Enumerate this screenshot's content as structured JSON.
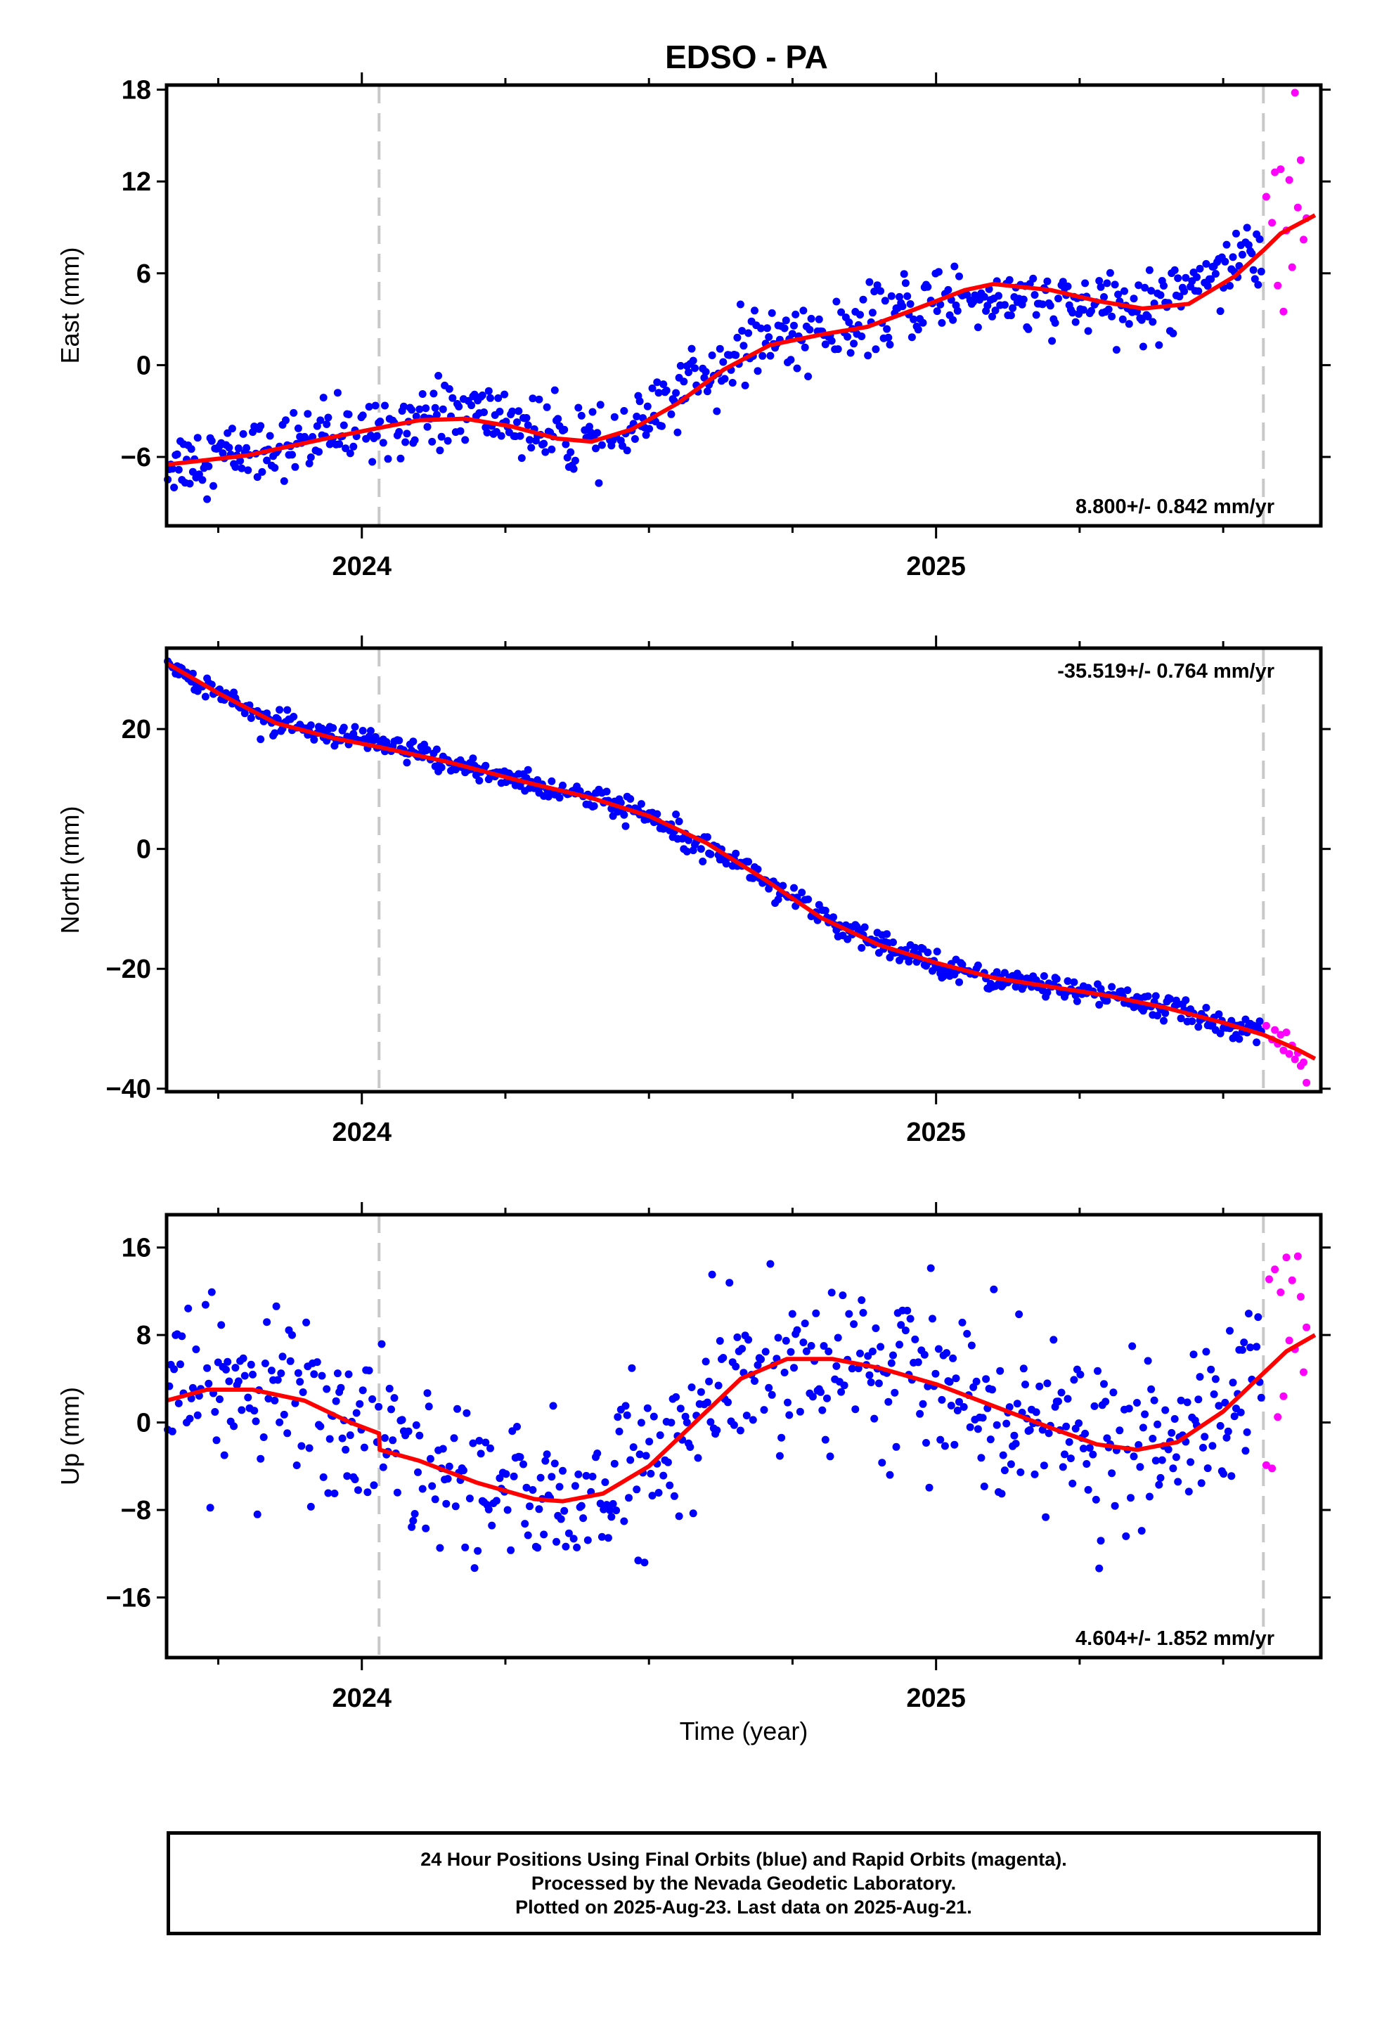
{
  "title": "EDSO - PA",
  "xlabel": "Time (year)",
  "footer": {
    "line1": "24 Hour Positions Using Final Orbits (blue) and Rapid Orbits (magenta).",
    "line2": "Processed by the Nevada Geodetic Laboratory.",
    "line3": "Plotted on 2025-Aug-23. Last data on 2025-Aug-21."
  },
  "colors": {
    "final": "#0000ff",
    "rapid": "#ff00ff",
    "fit": "#ff0000",
    "event": "#c8c8c8"
  },
  "chart_data": [
    {
      "type": "scatter",
      "ylabel": "East (mm)",
      "rate_label": "8.800+/- 0.842 mm/yr",
      "rate_position": "bottom-right",
      "xlim": [
        2023.66,
        2025.67
      ],
      "ylim": [
        -10.5,
        18.3
      ],
      "yticks": [
        -6,
        0,
        6,
        12,
        18
      ],
      "xticks": [
        2024,
        2025
      ],
      "events": [
        2024.03,
        2025.57
      ],
      "fit": [
        [
          2023.66,
          -6.5
        ],
        [
          2023.8,
          -5.9
        ],
        [
          2023.95,
          -4.7
        ],
        [
          2024.03,
          -4.1
        ],
        [
          2024.1,
          -3.6
        ],
        [
          2024.18,
          -3.5
        ],
        [
          2024.26,
          -4.0
        ],
        [
          2024.34,
          -4.8
        ],
        [
          2024.4,
          -5.0
        ],
        [
          2024.47,
          -4.2
        ],
        [
          2024.55,
          -2.5
        ],
        [
          2024.63,
          -0.3
        ],
        [
          2024.71,
          1.3
        ],
        [
          2024.8,
          2.0
        ],
        [
          2024.88,
          2.5
        ],
        [
          2024.96,
          3.6
        ],
        [
          2025.05,
          4.9
        ],
        [
          2025.1,
          5.3
        ],
        [
          2025.2,
          4.9
        ],
        [
          2025.28,
          4.2
        ],
        [
          2025.36,
          3.7
        ],
        [
          2025.44,
          4.0
        ],
        [
          2025.52,
          5.8
        ],
        [
          2025.57,
          7.5
        ],
        [
          2025.6,
          8.6
        ],
        [
          2025.66,
          9.8
        ]
      ],
      "final_trend": [
        [
          2023.66,
          -6.4
        ],
        [
          2023.82,
          -5.5
        ],
        [
          2024.0,
          -4.3
        ],
        [
          2024.1,
          -3.2
        ],
        [
          2024.2,
          -3.1
        ],
        [
          2024.28,
          -3.8
        ],
        [
          2024.36,
          -5.2
        ],
        [
          2024.42,
          -5.0
        ],
        [
          2024.52,
          -3.2
        ],
        [
          2024.58,
          -0.5
        ],
        [
          2024.66,
          0.6
        ],
        [
          2024.72,
          1.9
        ],
        [
          2024.86,
          2.2
        ],
        [
          2024.94,
          3.6
        ],
        [
          2025.06,
          4.7
        ],
        [
          2025.14,
          4.2
        ],
        [
          2025.22,
          3.8
        ],
        [
          2025.3,
          3.8
        ],
        [
          2025.38,
          3.7
        ],
        [
          2025.44,
          5.6
        ],
        [
          2025.5,
          6.6
        ],
        [
          2025.56,
          7.6
        ]
      ],
      "final_noise_mm": 1.05,
      "rapid": [
        [
          2025.575,
          11.0
        ],
        [
          2025.585,
          9.3
        ],
        [
          2025.59,
          12.6
        ],
        [
          2025.595,
          5.2
        ],
        [
          2025.6,
          12.8
        ],
        [
          2025.605,
          3.5
        ],
        [
          2025.61,
          8.8
        ],
        [
          2025.615,
          12.1
        ],
        [
          2025.62,
          6.4
        ],
        [
          2025.625,
          17.8
        ],
        [
          2025.63,
          10.3
        ],
        [
          2025.635,
          13.4
        ],
        [
          2025.64,
          8.2
        ],
        [
          2025.645,
          9.6
        ]
      ]
    },
    {
      "type": "scatter",
      "ylabel": "North (mm)",
      "rate_label": "-35.519+/- 0.764 mm/yr",
      "rate_position": "top-right",
      "xlim": [
        2023.66,
        2025.67
      ],
      "ylim": [
        -40.5,
        33.5
      ],
      "yticks": [
        -40,
        -20,
        0,
        20
      ],
      "xticks": [
        2024,
        2025
      ],
      "events": [
        2024.03,
        2025.57
      ],
      "fit": [
        [
          2023.66,
          31.0
        ],
        [
          2023.75,
          26.0
        ],
        [
          2023.85,
          21.0
        ],
        [
          2023.95,
          18.5
        ],
        [
          2024.03,
          17.0
        ],
        [
          2024.15,
          14.5
        ],
        [
          2024.27,
          11.5
        ],
        [
          2024.4,
          8.5
        ],
        [
          2024.5,
          5.5
        ],
        [
          2024.6,
          1.0
        ],
        [
          2024.7,
          -5.0
        ],
        [
          2024.8,
          -11.5
        ],
        [
          2024.9,
          -16.0
        ],
        [
          2025.0,
          -19.0
        ],
        [
          2025.1,
          -21.5
        ],
        [
          2025.2,
          -23.0
        ],
        [
          2025.3,
          -24.5
        ],
        [
          2025.4,
          -26.5
        ],
        [
          2025.5,
          -29.0
        ],
        [
          2025.57,
          -31.0
        ],
        [
          2025.63,
          -33.5
        ],
        [
          2025.66,
          -35.0
        ]
      ],
      "final_trend": [
        [
          2023.66,
          31.0
        ],
        [
          2023.75,
          26.0
        ],
        [
          2023.85,
          21.0
        ],
        [
          2023.95,
          18.5
        ],
        [
          2024.03,
          17.5
        ],
        [
          2024.15,
          14.5
        ],
        [
          2024.27,
          11.5
        ],
        [
          2024.4,
          8.5
        ],
        [
          2024.5,
          5.5
        ],
        [
          2024.6,
          1.0
        ],
        [
          2024.7,
          -5.0
        ],
        [
          2024.8,
          -11.5
        ],
        [
          2024.9,
          -16.0
        ],
        [
          2025.0,
          -19.0
        ],
        [
          2025.1,
          -21.5
        ],
        [
          2025.2,
          -23.0
        ],
        [
          2025.3,
          -24.5
        ],
        [
          2025.4,
          -26.5
        ],
        [
          2025.5,
          -29.0
        ],
        [
          2025.57,
          -31.0
        ]
      ],
      "final_noise_mm": 1.0,
      "rapid": [
        [
          2025.575,
          -29.5
        ],
        [
          2025.585,
          -31.8
        ],
        [
          2025.59,
          -30.2
        ],
        [
          2025.595,
          -32.5
        ],
        [
          2025.6,
          -31.0
        ],
        [
          2025.605,
          -33.6
        ],
        [
          2025.61,
          -30.6
        ],
        [
          2025.615,
          -34.2
        ],
        [
          2025.62,
          -32.8
        ],
        [
          2025.625,
          -35.1
        ],
        [
          2025.63,
          -34.0
        ],
        [
          2025.635,
          -36.2
        ],
        [
          2025.64,
          -35.6
        ],
        [
          2025.645,
          -39.0
        ]
      ]
    },
    {
      "type": "scatter",
      "ylabel": "Up (mm)",
      "rate_label": "4.604+/- 1.852 mm/yr",
      "rate_position": "bottom-right",
      "xlim": [
        2023.66,
        2025.67
      ],
      "ylim": [
        -21.5,
        19.0
      ],
      "yticks": [
        -16,
        -8,
        0,
        8,
        16
      ],
      "xticks": [
        2024,
        2025
      ],
      "events": [
        2024.03,
        2025.57
      ],
      "fit": [
        [
          2023.66,
          2.0
        ],
        [
          2023.73,
          3.0
        ],
        [
          2023.81,
          3.0
        ],
        [
          2023.9,
          2.0
        ],
        [
          2023.98,
          0.0
        ],
        [
          2024.03,
          -1.0
        ],
        [
          2024.031,
          -2.5
        ],
        [
          2024.1,
          -3.5
        ],
        [
          2024.2,
          -5.5
        ],
        [
          2024.3,
          -7.0
        ],
        [
          2024.35,
          -7.2
        ],
        [
          2024.42,
          -6.5
        ],
        [
          2024.5,
          -4.0
        ],
        [
          2024.58,
          0.0
        ],
        [
          2024.66,
          4.0
        ],
        [
          2024.74,
          5.8
        ],
        [
          2024.82,
          5.8
        ],
        [
          2024.9,
          5.0
        ],
        [
          2025.0,
          3.5
        ],
        [
          2025.1,
          1.5
        ],
        [
          2025.2,
          -0.5
        ],
        [
          2025.28,
          -2.0
        ],
        [
          2025.35,
          -2.5
        ],
        [
          2025.42,
          -1.8
        ],
        [
          2025.5,
          1.0
        ],
        [
          2025.56,
          4.0
        ],
        [
          2025.61,
          6.5
        ],
        [
          2025.66,
          8.0
        ]
      ],
      "final_trend": [
        [
          2023.66,
          2.0
        ],
        [
          2023.73,
          3.0
        ],
        [
          2023.81,
          3.0
        ],
        [
          2023.9,
          2.0
        ],
        [
          2023.98,
          0.0
        ],
        [
          2024.03,
          -1.0
        ],
        [
          2024.04,
          -2.5
        ],
        [
          2024.1,
          -3.5
        ],
        [
          2024.2,
          -5.5
        ],
        [
          2024.3,
          -7.0
        ],
        [
          2024.35,
          -7.2
        ],
        [
          2024.42,
          -6.5
        ],
        [
          2024.5,
          -4.0
        ],
        [
          2024.58,
          0.0
        ],
        [
          2024.66,
          4.0
        ],
        [
          2024.74,
          5.8
        ],
        [
          2024.82,
          5.8
        ],
        [
          2024.9,
          5.0
        ],
        [
          2025.0,
          3.5
        ],
        [
          2025.1,
          1.5
        ],
        [
          2025.2,
          -0.5
        ],
        [
          2025.28,
          -2.0
        ],
        [
          2025.35,
          -2.5
        ],
        [
          2025.42,
          -1.8
        ],
        [
          2025.5,
          1.0
        ],
        [
          2025.56,
          4.0
        ]
      ],
      "final_noise_mm": 3.6,
      "rapid": [
        [
          2025.575,
          -3.9
        ],
        [
          2025.58,
          13.1
        ],
        [
          2025.585,
          -4.2
        ],
        [
          2025.59,
          14.0
        ],
        [
          2025.595,
          0.5
        ],
        [
          2025.6,
          11.9
        ],
        [
          2025.605,
          2.4
        ],
        [
          2025.61,
          15.1
        ],
        [
          2025.615,
          7.5
        ],
        [
          2025.62,
          13.0
        ],
        [
          2025.625,
          6.7
        ],
        [
          2025.63,
          15.2
        ],
        [
          2025.635,
          11.5
        ],
        [
          2025.64,
          4.6
        ],
        [
          2025.645,
          8.7
        ]
      ]
    }
  ]
}
